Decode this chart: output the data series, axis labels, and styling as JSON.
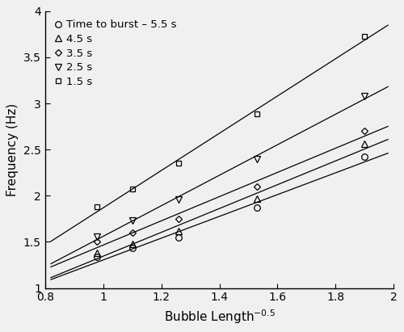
{
  "title": "",
  "xlabel": "Bubble Length$^{-0.5}$",
  "ylabel": "Frequency (Hz)",
  "xlim": [
    0.8,
    2.0
  ],
  "ylim": [
    1.0,
    4.0
  ],
  "xticks": [
    0.8,
    1.0,
    1.2,
    1.4,
    1.6,
    1.8,
    2.0
  ],
  "xtick_labels": [
    "0.8",
    "1",
    "1.2",
    "1.4",
    "1.6",
    "1.8",
    "2"
  ],
  "yticks": [
    1.0,
    1.5,
    2.0,
    2.5,
    3.0,
    3.5,
    4.0
  ],
  "ytick_labels": [
    "1",
    "1.5",
    "2",
    "2.5",
    "3",
    "3.5",
    "4"
  ],
  "background_color": "#f0f0f0",
  "series": [
    {
      "label": "Time to burst – 5.5 s",
      "marker": "o",
      "marker_size": 5.5,
      "x": [
        0.98,
        1.1,
        1.26,
        1.53,
        1.9
      ],
      "y": [
        1.34,
        1.43,
        1.55,
        1.87,
        2.42
      ]
    },
    {
      "label": "4.5 s",
      "marker": "^",
      "marker_size": 5.5,
      "x": [
        0.98,
        1.1,
        1.26,
        1.53,
        1.9
      ],
      "y": [
        1.38,
        1.48,
        1.62,
        1.97,
        2.56
      ]
    },
    {
      "label": "3.5 s",
      "marker": "D",
      "marker_size": 4.5,
      "x": [
        0.98,
        1.1,
        1.26,
        1.53,
        1.9
      ],
      "y": [
        1.5,
        1.6,
        1.75,
        2.1,
        2.7
      ]
    },
    {
      "label": "2.5 s",
      "marker": "v",
      "marker_size": 5.5,
      "x": [
        0.98,
        1.1,
        1.26,
        1.53,
        1.9
      ],
      "y": [
        1.56,
        1.73,
        1.96,
        2.4,
        3.08
      ]
    },
    {
      "label": "1.5 s",
      "marker": "s",
      "marker_size": 4.5,
      "x": [
        0.98,
        1.1,
        1.26,
        1.53,
        1.9
      ],
      "y": [
        1.88,
        2.07,
        2.35,
        2.89,
        3.73
      ]
    }
  ]
}
